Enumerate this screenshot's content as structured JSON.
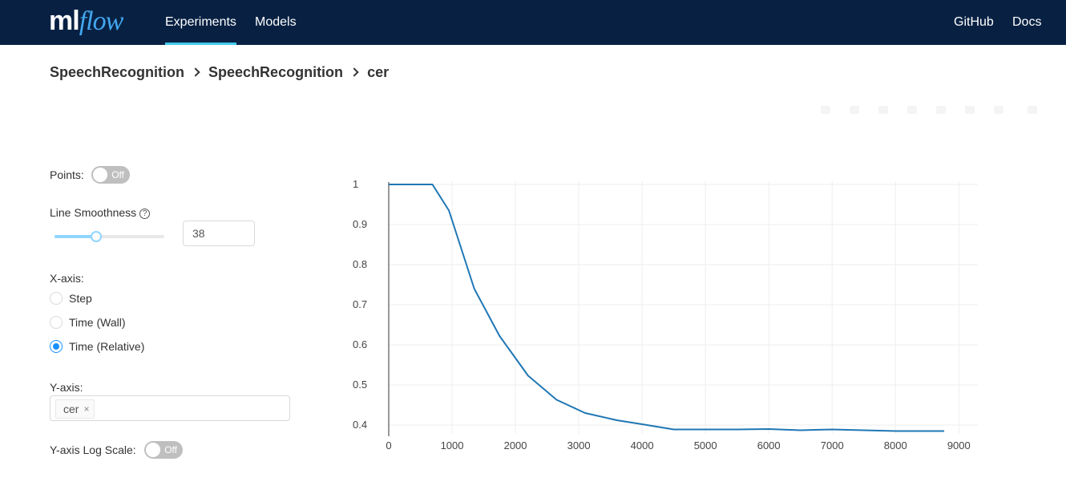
{
  "header": {
    "logo_ml": "ml",
    "logo_flow": "flow",
    "nav": {
      "experiments": "Experiments",
      "models": "Models",
      "github": "GitHub",
      "docs": "Docs"
    }
  },
  "breadcrumb": [
    "SpeechRecognition",
    "SpeechRecognition",
    "cer"
  ],
  "controls": {
    "points_label": "Points:",
    "points_toggle": "Off",
    "smoothness_label": "Line Smoothness",
    "smoothness_value": "38",
    "smoothness_fraction": 0.38,
    "xaxis_label": "X-axis:",
    "xaxis_options": [
      {
        "label": "Step",
        "checked": false
      },
      {
        "label": "Time (Wall)",
        "checked": false
      },
      {
        "label": "Time (Relative)",
        "checked": true
      }
    ],
    "yaxis_label": "Y-axis:",
    "yaxis_tag": "cer",
    "yaxis_tag_close": "×",
    "logscale_label": "Y-axis Log Scale:",
    "logscale_toggle": "Off"
  },
  "colors": {
    "line": "#1f77b4",
    "accent": "#1890ff",
    "header": "#082143",
    "nav_underline": "#43c9ed"
  },
  "chart_data": {
    "type": "line",
    "xlim": [
      0,
      9300
    ],
    "ylim": [
      0.37,
      1.02
    ],
    "xticks": [
      0,
      1000,
      2000,
      3000,
      4000,
      5000,
      6000,
      7000,
      8000,
      9000
    ],
    "yticks": [
      0.4,
      0.5,
      0.6,
      0.7,
      0.8,
      0.9,
      1
    ],
    "ytick_labels": [
      "0.4",
      "0.5",
      "0.6",
      "0.7",
      "0.8",
      "0.9",
      "1"
    ],
    "grid": true,
    "series": [
      {
        "x": [
          0,
          690,
          950,
          1350,
          1750,
          2200,
          2650,
          3100,
          3600,
          4000,
          4500,
          5000,
          5500,
          6000,
          6500,
          7000,
          7500,
          8000,
          8770
        ],
        "y": [
          1.0,
          1.0,
          0.935,
          0.74,
          0.622,
          0.523,
          0.463,
          0.43,
          0.412,
          0.402,
          0.389,
          0.389,
          0.389,
          0.39,
          0.387,
          0.389,
          0.387,
          0.385,
          0.385
        ]
      }
    ]
  }
}
